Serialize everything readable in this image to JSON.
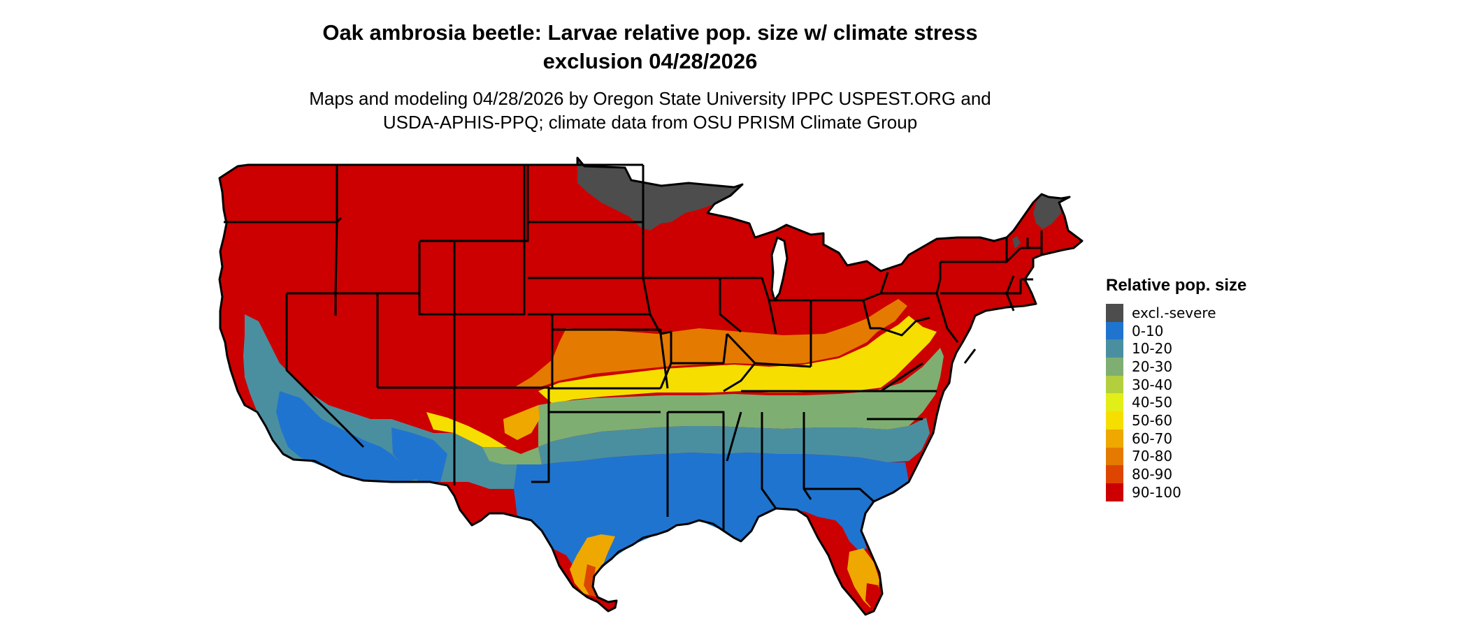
{
  "title_line1": "Oak ambrosia beetle: Larvae relative pop. size w/ climate stress",
  "title_line2": "exclusion 04/28/2026",
  "subtitle_line1": "Maps and modeling 04/28/2026 by Oregon State University IPPC USPEST.ORG and",
  "subtitle_line2": "USDA-APHIS-PPQ; climate data from OSU PRISM Climate Group",
  "legend": {
    "title": "Relative pop. size",
    "items": [
      {
        "label": "excl.-severe",
        "color": "#4d4d4d"
      },
      {
        "label": "0-10",
        "color": "#1f74cf"
      },
      {
        "label": "10-20",
        "color": "#4a8fa0"
      },
      {
        "label": "20-30",
        "color": "#7fae72"
      },
      {
        "label": "30-40",
        "color": "#b3cf3e"
      },
      {
        "label": "40-50",
        "color": "#e2ee17"
      },
      {
        "label": "50-60",
        "color": "#f6df00"
      },
      {
        "label": "60-70",
        "color": "#eea800"
      },
      {
        "label": "70-80",
        "color": "#e47a00"
      },
      {
        "label": "80-90",
        "color": "#dd4500"
      },
      {
        "label": "90-100",
        "color": "#cc0000"
      }
    ]
  }
}
